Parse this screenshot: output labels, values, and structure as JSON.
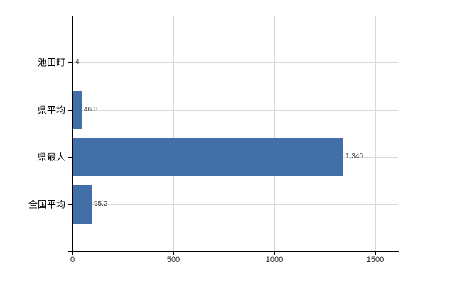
{
  "chart_data": {
    "type": "bar",
    "orientation": "horizontal",
    "categories": [
      "池田町",
      "県平均",
      "県最大",
      "全国平均"
    ],
    "values": [
      4,
      46.3,
      1340,
      95.2
    ],
    "value_labels": [
      "4",
      "46.3",
      "1,340",
      "95.2"
    ],
    "x_ticks": [
      0,
      500,
      1000,
      1500
    ],
    "x_tick_labels": [
      "0",
      "500",
      "1000",
      "1500"
    ],
    "xlim": [
      0,
      1612
    ],
    "grid": true,
    "legend": false,
    "title": "",
    "xlabel": "",
    "ylabel": "",
    "bar_color": "#426fa8",
    "axis_color": "#000000",
    "gridline_color": "#d8d8d8",
    "top_border_style": "dashed"
  }
}
